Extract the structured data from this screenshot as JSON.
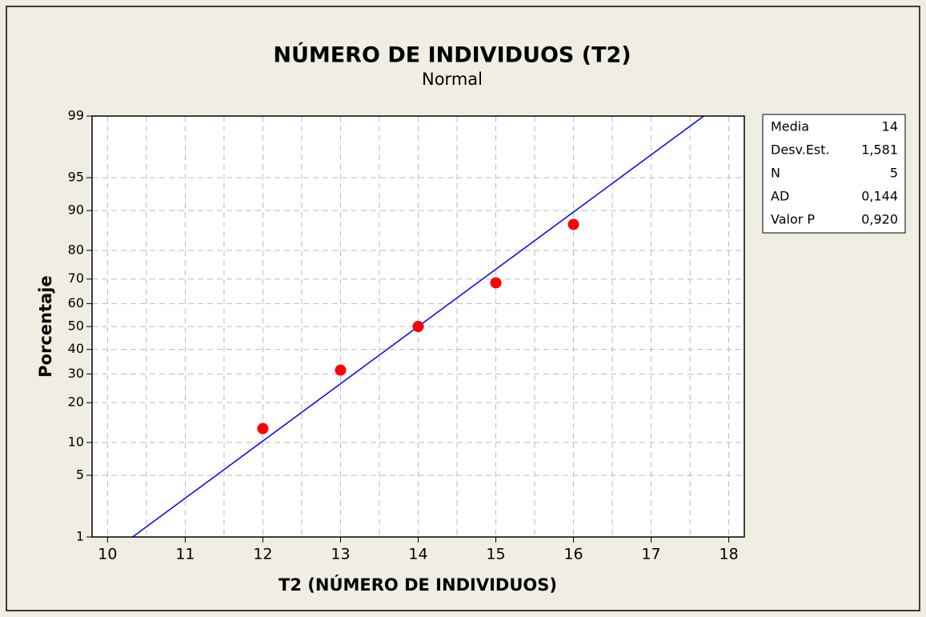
{
  "chart_data": {
    "type": "scatter",
    "title": "NÚMERO DE INDIVIDUOS (T2)",
    "subtitle": "Normal",
    "x_label": "T2 (NÚMERO DE INDIVIDUOS)",
    "y_label": "Porcentaje",
    "yscale": "probability",
    "x": [
      12,
      13,
      14,
      15,
      16
    ],
    "values": [
      12.96,
      31.48,
      50,
      68.52,
      87.04
    ],
    "color": "#ff0000",
    "line_color": "#0000ff",
    "xlim": [
      9.8,
      18.2
    ],
    "xticks": [
      10,
      11,
      12,
      13,
      14,
      15,
      16,
      17,
      18
    ],
    "xgrid_minor": [
      10.5,
      11.5,
      12.5,
      13.5,
      14.5,
      15.5,
      16.5,
      17.5
    ],
    "ylim": [
      1,
      99
    ],
    "yticks": [
      1,
      5,
      10,
      20,
      30,
      40,
      50,
      60,
      70,
      80,
      90,
      95,
      99
    ],
    "grid": true,
    "stats": [
      {
        "name": "Media",
        "value": 14
      },
      {
        "name": "Desv.Est.",
        "value": 1.581,
        "label": "1,581"
      },
      {
        "name": "N",
        "value": 5
      },
      {
        "name": "AD",
        "value": 0.144,
        "label": "0,144"
      },
      {
        "name": "Valor P",
        "value": 0.92,
        "label": "0,920"
      }
    ]
  }
}
